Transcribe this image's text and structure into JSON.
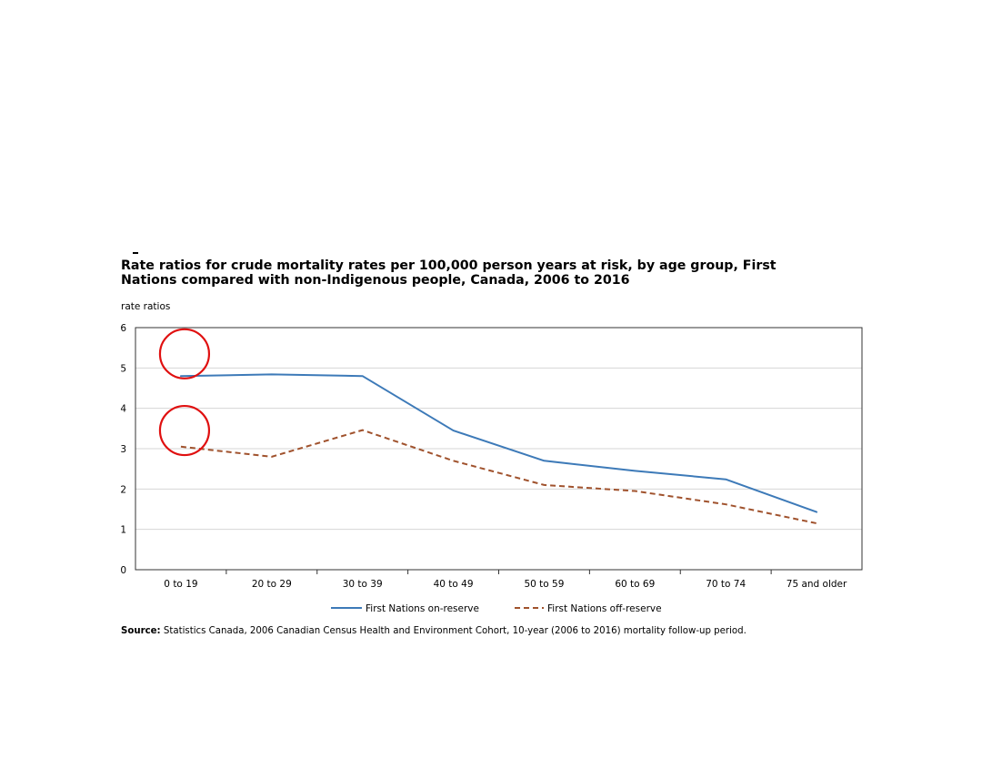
{
  "chart_data": {
    "type": "line",
    "title_line1": "Rate ratios for crude mortality rates per 100,000 person years at risk, by age group, First",
    "title_line2": "Nations compared with non-Indigenous people, Canada, 2006 to 2016",
    "ylabel": "rate ratios",
    "ylim": [
      0,
      6
    ],
    "yticks": [
      "0",
      "1",
      "2",
      "3",
      "4",
      "5",
      "6"
    ],
    "categories": [
      "0 to 19",
      "20 to 29",
      "30 to 39",
      "40 to 49",
      "50 to 59",
      "60 to 69",
      "70 to 74",
      "75 and older"
    ],
    "series": [
      {
        "name": "First Nations on-reserve",
        "color": "#3d7ab8",
        "style": "solid",
        "values": [
          4.8,
          4.84,
          4.8,
          3.45,
          2.7,
          2.45,
          2.24,
          1.43
        ]
      },
      {
        "name": "First Nations off-reserve",
        "color": "#a0522d",
        "style": "dashed",
        "values": [
          3.05,
          2.8,
          3.46,
          2.7,
          2.1,
          1.95,
          1.62,
          1.15
        ]
      }
    ],
    "grid": true,
    "legend_position": "bottom",
    "annotations": [
      {
        "shape": "circle",
        "color": "#e01010",
        "at_category": "0 to 19",
        "y": 5.35
      },
      {
        "shape": "circle",
        "color": "#e01010",
        "at_category": "0 to 19",
        "y": 3.45
      }
    ]
  },
  "source": {
    "label": "Source:",
    "text": " Statistics Canada, 2006 Canadian Census Health and Environment Cohort, 10-year (2006 to 2016) mortality follow-up period."
  }
}
